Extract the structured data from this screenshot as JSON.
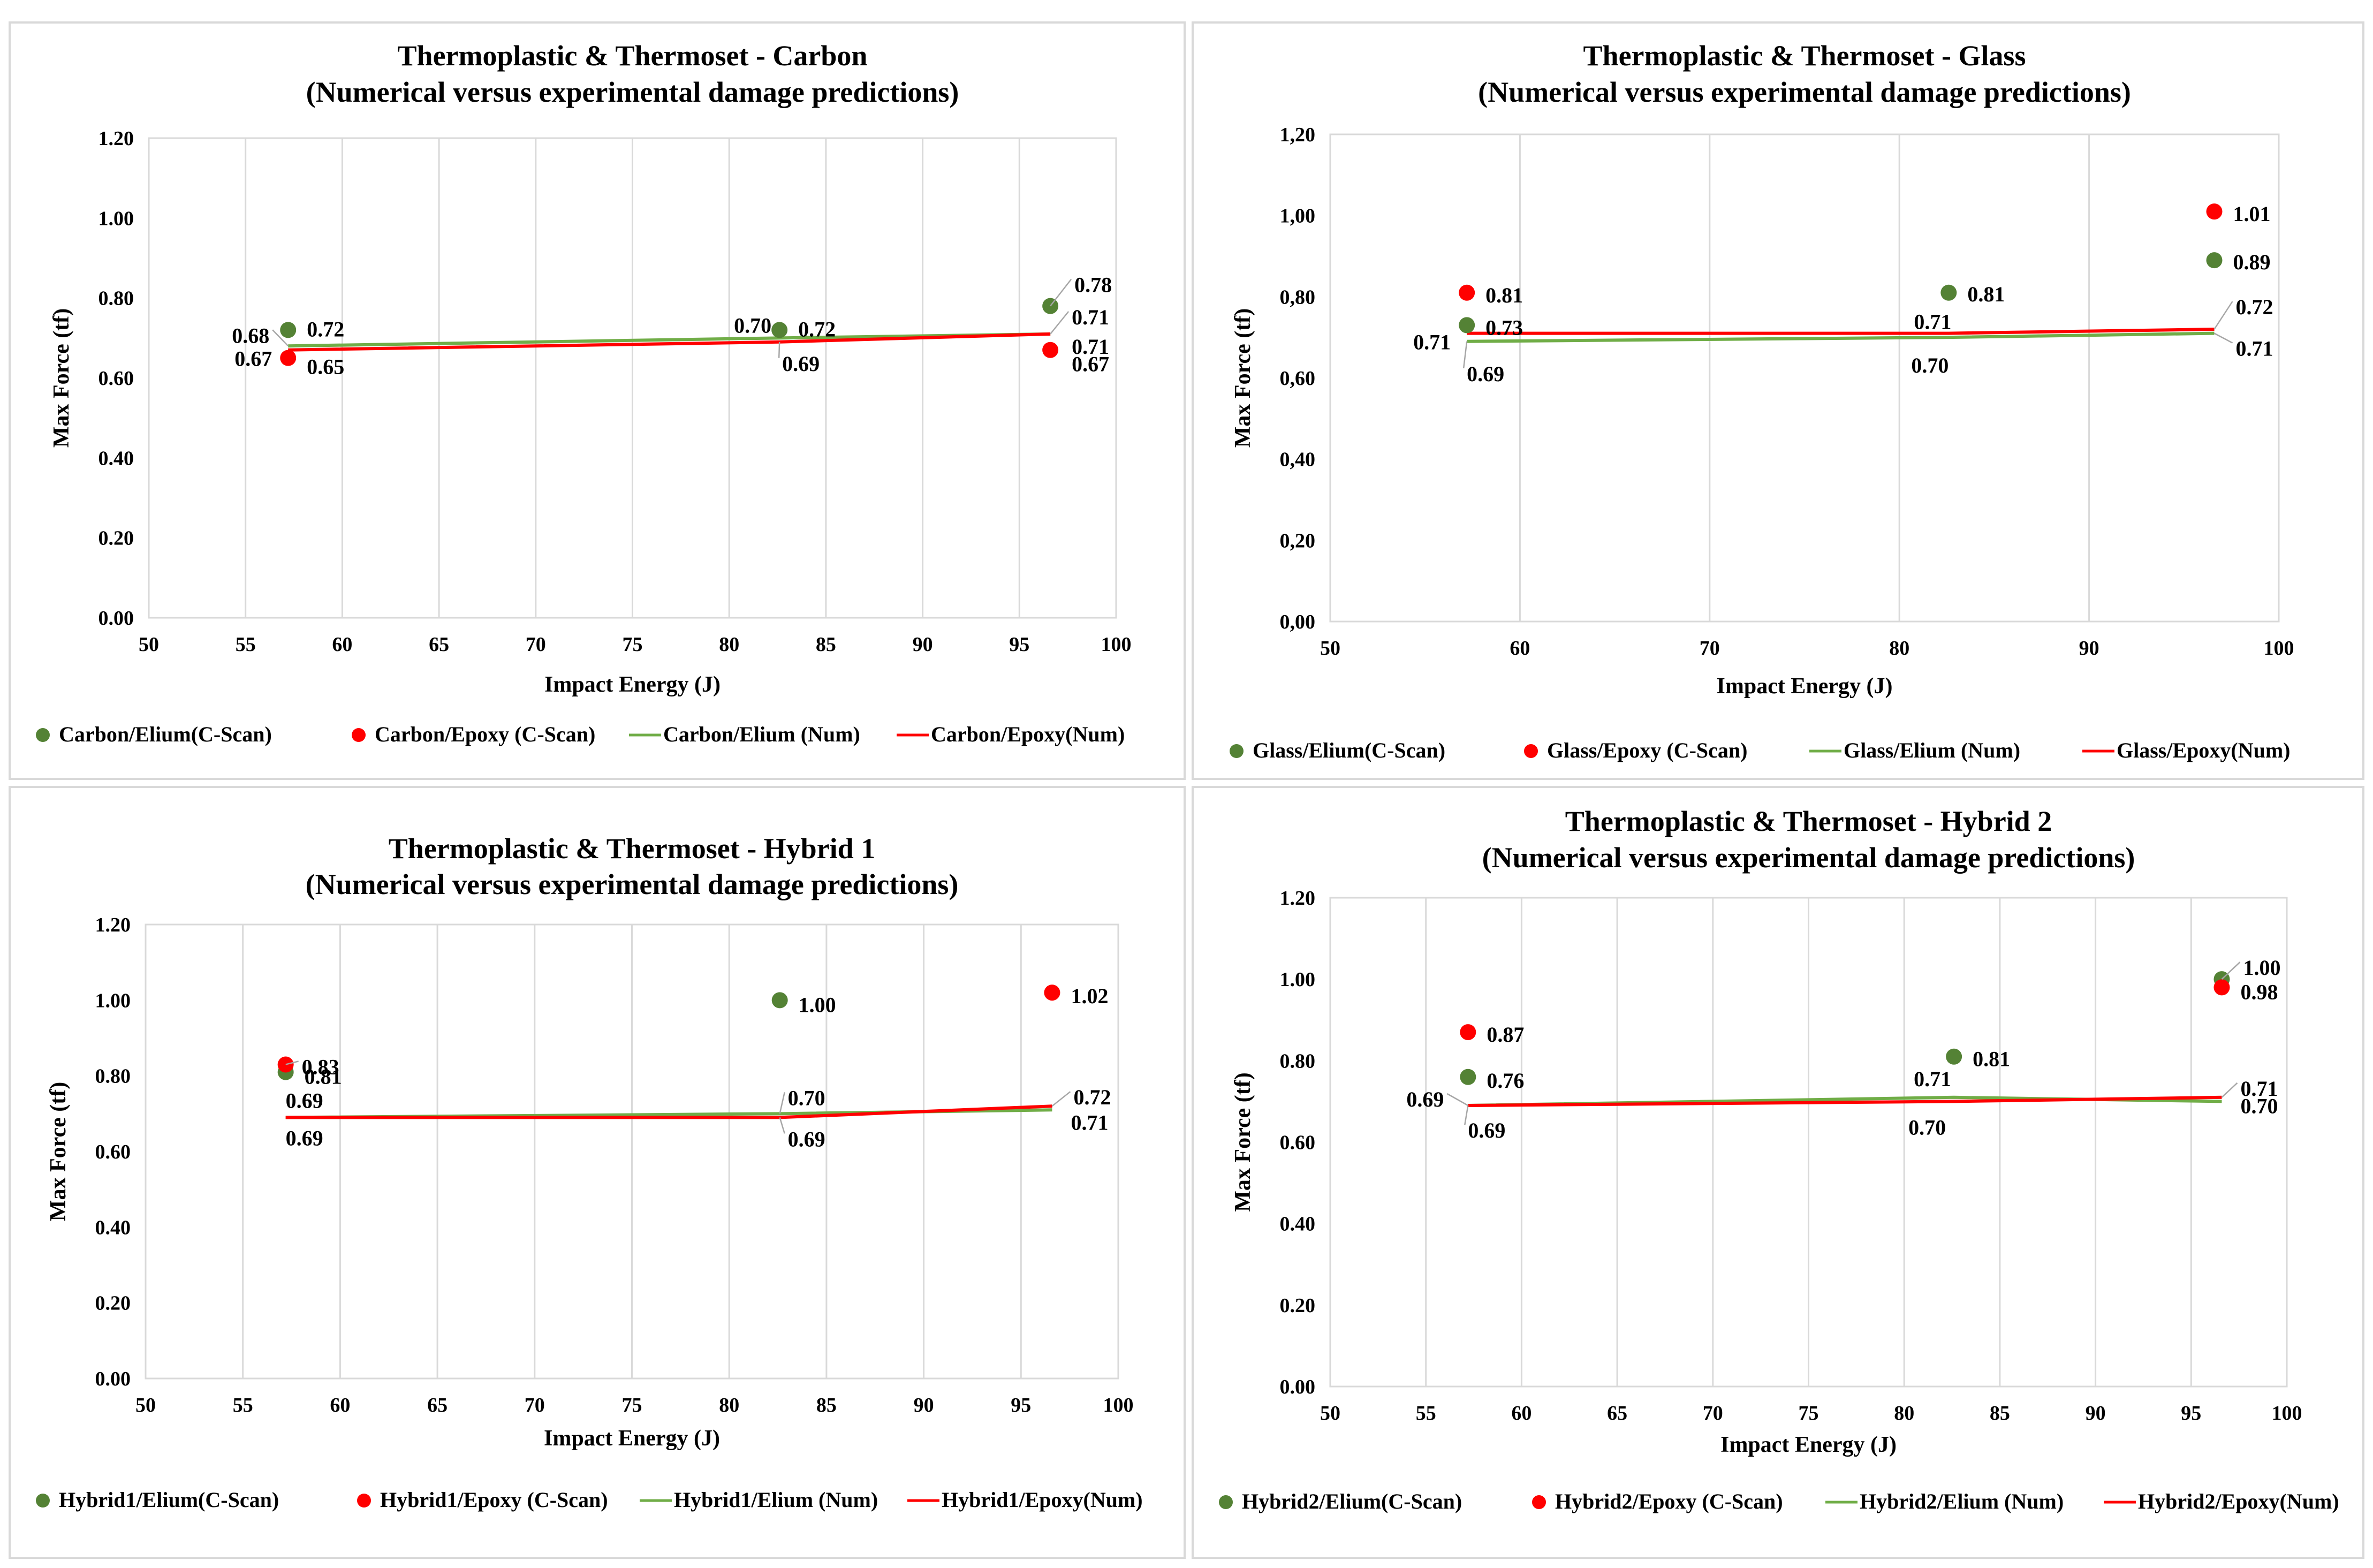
{
  "chart_data": [
    {
      "type": "scatter",
      "title": "Thermoplastic & Thermoset - Carbon",
      "subtitle": "(Numerical versus experimental damage predictions)",
      "xlabel": "Impact Energy (J)",
      "ylabel": "Max Force (tf)",
      "xlim": [
        50,
        100
      ],
      "ylim": [
        0,
        1.2
      ],
      "x_ticks": [
        "50",
        "55",
        "60",
        "65",
        "70",
        "75",
        "80",
        "85",
        "90",
        "95",
        "100"
      ],
      "y_ticks": [
        "0.00",
        "0.20",
        "0.40",
        "0.60",
        "0.80",
        "1.00",
        "1.20"
      ],
      "grid": "vertical",
      "legend_position": "bottom",
      "series": [
        {
          "name": "Carbon/Elium(C-Scan)",
          "kind": "marker",
          "color": "#548235",
          "x": [
            57.2,
            82.6,
            96.6
          ],
          "y": [
            0.72,
            0.72,
            0.78
          ],
          "labels": [
            "0.72",
            "0.72",
            "0.78"
          ]
        },
        {
          "name": "Carbon/Epoxy (C-Scan)",
          "kind": "marker",
          "color": "#ff0000",
          "x": [
            57.2,
            96.6
          ],
          "y": [
            0.65,
            0.67
          ],
          "labels": [
            "0.65",
            "0.67"
          ]
        },
        {
          "name": "Carbon/Elium (Num)",
          "kind": "line",
          "color": "#70ad47",
          "x": [
            57.2,
            82.6,
            96.6
          ],
          "y": [
            0.68,
            0.7,
            0.71
          ],
          "labels": [
            "0.68",
            "0.70",
            "0.71"
          ]
        },
        {
          "name": "Carbon/Epoxy(Num)",
          "kind": "line",
          "color": "#ff0000",
          "x": [
            57.2,
            82.6,
            96.6
          ],
          "y": [
            0.67,
            0.69,
            0.71
          ],
          "labels": [
            "0.67",
            "0.69",
            "0.71"
          ]
        }
      ]
    },
    {
      "type": "scatter",
      "title": "Thermoplastic & Thermoset - Glass",
      "subtitle": "(Numerical versus experimental damage predictions)",
      "xlabel": "Impact Energy (J)",
      "ylabel": "Max Force (tf)",
      "xlim": [
        50,
        100
      ],
      "ylim": [
        0,
        1.2
      ],
      "x_ticks": [
        "50",
        "60",
        "70",
        "80",
        "90",
        "100"
      ],
      "y_ticks": [
        "0,00",
        "0,20",
        "0,40",
        "0,60",
        "0,80",
        "1,00",
        "1,20"
      ],
      "grid": "vertical",
      "legend_position": "bottom",
      "series": [
        {
          "name": "Glass/Elium(C-Scan)",
          "kind": "marker",
          "color": "#548235",
          "x": [
            57.2,
            82.6,
            96.6
          ],
          "y": [
            0.73,
            0.81,
            0.89
          ],
          "labels": [
            "0.73",
            "0.81",
            "0.89"
          ]
        },
        {
          "name": "Glass/Epoxy (C-Scan)",
          "kind": "marker",
          "color": "#ff0000",
          "x": [
            57.2,
            96.6
          ],
          "y": [
            0.81,
            1.01
          ],
          "labels": [
            "0.81",
            "1.01"
          ]
        },
        {
          "name": "Glass/Elium (Num)",
          "kind": "line",
          "color": "#70ad47",
          "x": [
            57.2,
            82.6,
            96.6
          ],
          "y": [
            0.69,
            0.7,
            0.71
          ],
          "labels": [
            "0.69",
            "0.70",
            "0.71"
          ]
        },
        {
          "name": "Glass/Epoxy(Num)",
          "kind": "line",
          "color": "#ff0000",
          "x": [
            57.2,
            82.6,
            96.6
          ],
          "y": [
            0.71,
            0.71,
            0.72
          ],
          "labels": [
            "0.71",
            "0.71",
            "0.72"
          ]
        }
      ]
    },
    {
      "type": "scatter",
      "title": "Thermoplastic & Thermoset - Hybrid 1",
      "subtitle": "(Numerical versus experimental damage predictions)",
      "xlabel": "Impact Energy (J)",
      "ylabel": "Max Force (tf)",
      "xlim": [
        50,
        100
      ],
      "ylim": [
        0,
        1.2
      ],
      "x_ticks": [
        "50",
        "55",
        "60",
        "65",
        "70",
        "75",
        "80",
        "85",
        "90",
        "95",
        "100"
      ],
      "y_ticks": [
        "0.00",
        "0.20",
        "0.40",
        "0.60",
        "0.80",
        "1.00",
        "1.20"
      ],
      "grid": "vertical",
      "legend_position": "bottom",
      "series": [
        {
          "name": "Hybrid1/Elium(C-Scan)",
          "kind": "marker",
          "color": "#548235",
          "x": [
            57.2,
            82.6
          ],
          "y": [
            0.81,
            1.0
          ],
          "labels": [
            "0.81",
            "1.00"
          ]
        },
        {
          "name": "Hybrid1/Epoxy (C-Scan)",
          "kind": "marker",
          "color": "#ff0000",
          "x": [
            57.2,
            96.6
          ],
          "y": [
            0.83,
            1.02
          ],
          "labels": [
            "0.83",
            "1.02"
          ]
        },
        {
          "name": "Hybrid1/Elium (Num)",
          "kind": "line",
          "color": "#70ad47",
          "x": [
            57.2,
            82.6,
            96.6
          ],
          "y": [
            0.69,
            0.7,
            0.71
          ],
          "labels": [
            "0.69",
            "0.70",
            "0.71"
          ]
        },
        {
          "name": "Hybrid1/Epoxy(Num)",
          "kind": "line",
          "color": "#ff0000",
          "x": [
            57.2,
            82.6,
            96.6
          ],
          "y": [
            0.69,
            0.69,
            0.72
          ],
          "labels": [
            "0.69",
            "0.69",
            "0.72"
          ]
        }
      ]
    },
    {
      "type": "scatter",
      "title": "Thermoplastic & Thermoset - Hybrid 2",
      "subtitle": "(Numerical versus experimental damage predictions)",
      "xlabel": "Impact Energy (J)",
      "ylabel": "Max Force (tf)",
      "xlim": [
        50,
        100
      ],
      "ylim": [
        0,
        1.2
      ],
      "x_ticks": [
        "50",
        "55",
        "60",
        "65",
        "70",
        "75",
        "80",
        "85",
        "90",
        "95",
        "100"
      ],
      "y_ticks": [
        "0.00",
        "0.20",
        "0.40",
        "0.60",
        "0.80",
        "1.00",
        "1.20"
      ],
      "grid": "vertical",
      "legend_position": "bottom",
      "series": [
        {
          "name": "Hybrid2/Elium(C-Scan)",
          "kind": "marker",
          "color": "#548235",
          "x": [
            57.2,
            82.6,
            96.6
          ],
          "y": [
            0.76,
            0.81,
            1.0
          ],
          "labels": [
            "0.76",
            "0.81",
            "1.00"
          ]
        },
        {
          "name": "Hybrid2/Epoxy (C-Scan)",
          "kind": "marker",
          "color": "#ff0000",
          "x": [
            57.2,
            96.6
          ],
          "y": [
            0.87,
            0.98
          ],
          "labels": [
            "0.87",
            "0.98"
          ]
        },
        {
          "name": "Hybrid2/Elium (Num)",
          "kind": "line",
          "color": "#70ad47",
          "x": [
            57.2,
            82.6,
            96.6
          ],
          "y": [
            0.69,
            0.71,
            0.7
          ],
          "labels": [
            "0.69",
            "0.71",
            "0.70"
          ]
        },
        {
          "name": "Hybrid2/Epoxy(Num)",
          "kind": "line",
          "color": "#ff0000",
          "x": [
            57.2,
            82.6,
            96.6
          ],
          "y": [
            0.69,
            0.7,
            0.71
          ],
          "labels": [
            "0.69",
            "0.70",
            "0.71"
          ]
        }
      ]
    }
  ]
}
